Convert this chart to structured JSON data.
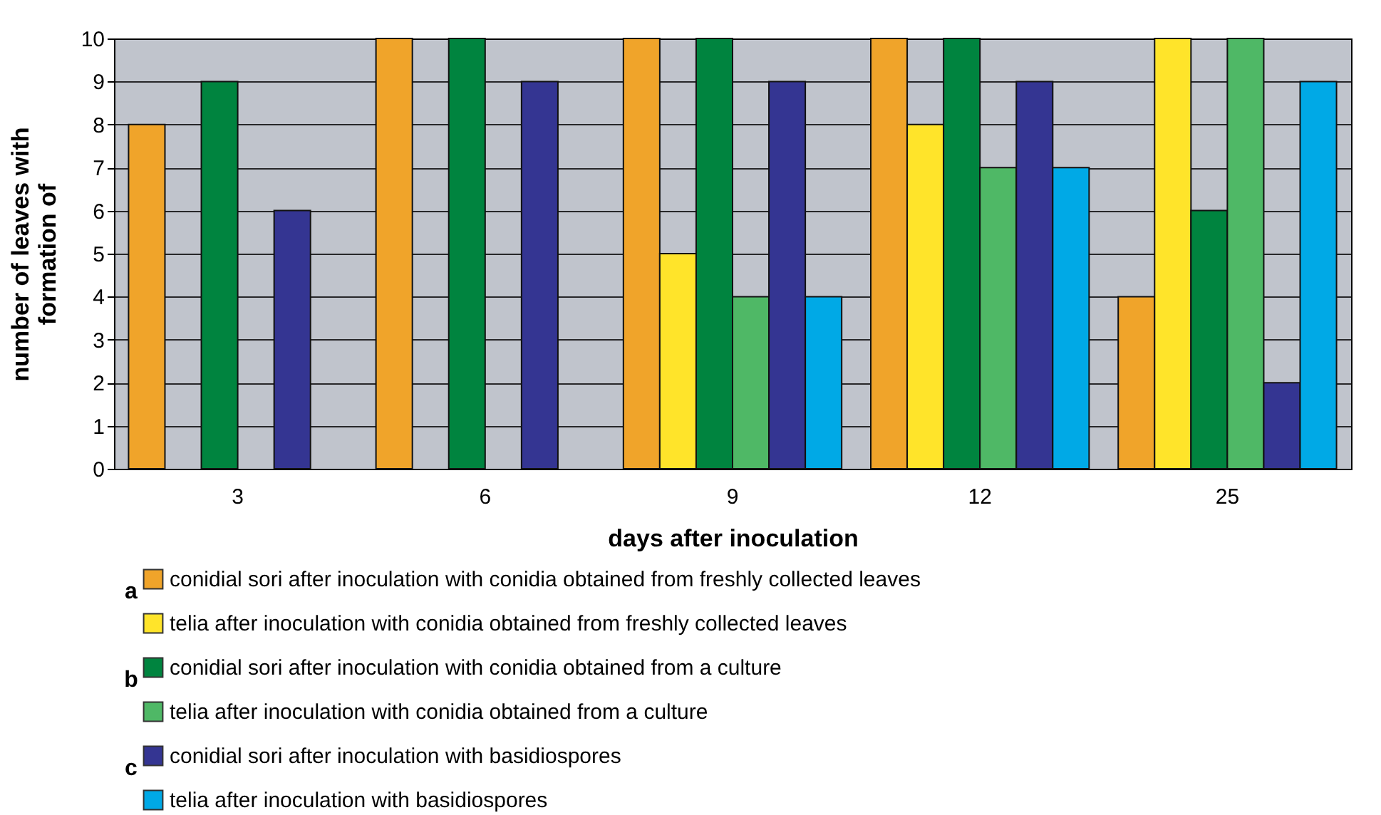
{
  "chart_data": {
    "type": "bar",
    "xlabel": "days after inoculation",
    "ylabel": "number of leaves with\nformation of",
    "categories": [
      "3",
      "6",
      "9",
      "12",
      "25"
    ],
    "series": [
      {
        "name": "conidial sori after inoculation with conidia obtained from freshly collected leaves",
        "color": "#f0a42a",
        "values": [
          8,
          10,
          10,
          10,
          4
        ]
      },
      {
        "name": "telia after inoculation with conidia obtained from freshly collected leaves",
        "color": "#ffe42a",
        "values": [
          null,
          null,
          5,
          8,
          10
        ]
      },
      {
        "name": "conidial sori after inoculation with conidia obtained from a culture",
        "color": "#00843f",
        "values": [
          9,
          10,
          10,
          10,
          6
        ]
      },
      {
        "name": "telia after inoculation with conidia obtained from a culture",
        "color": "#4fb866",
        "values": [
          null,
          null,
          4,
          7,
          10
        ]
      },
      {
        "name": "conidial sori after inoculation with basidiospores",
        "color": "#343592",
        "values": [
          6,
          9,
          9,
          9,
          2
        ]
      },
      {
        "name": "telia after inoculation with basidiospores",
        "color": "#00a9e6",
        "values": [
          null,
          null,
          4,
          7,
          9
        ]
      }
    ],
    "annotations": [
      "a",
      "b",
      "c"
    ],
    "ylim": [
      0,
      10
    ],
    "yticks": [
      0,
      1,
      2,
      3,
      4,
      5,
      6,
      7,
      8,
      9,
      10
    ],
    "grid": "y",
    "legend": "bottom"
  }
}
